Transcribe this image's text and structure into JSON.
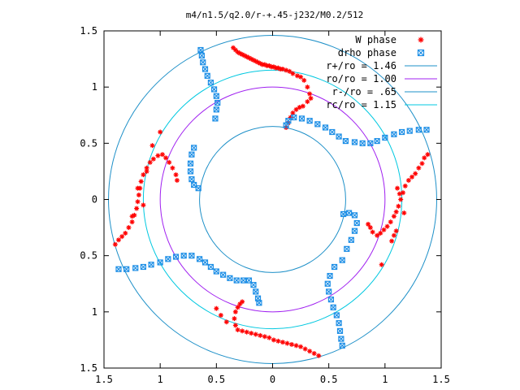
{
  "chart_data": {
    "type": "scatter",
    "title": "m4/n1.5/q2.0/r-+.45-j232/M0.2/512",
    "xlim": [
      -1.5,
      1.5
    ],
    "ylim": [
      -1.5,
      1.5
    ],
    "x_ticks": [
      -1.5,
      -1,
      -0.5,
      0,
      0.5,
      1,
      1.5
    ],
    "y_ticks": [
      -1.5,
      -1,
      -0.5,
      0,
      0.5,
      1,
      1.5
    ],
    "x_tick_labels": [
      "1.5",
      "1",
      "0.5",
      "0",
      "0.5",
      "1",
      "1.5"
    ],
    "y_tick_labels": [
      "1.5",
      "1",
      "0.5",
      "0",
      "0.5",
      "1",
      "1.5"
    ],
    "grid": false,
    "legend_position": "top-right",
    "circles": [
      {
        "name": "r+/ro = 1.46",
        "radius": 1.46,
        "color": "#1e90c8"
      },
      {
        "name": "ro/ro = 1.00",
        "radius": 1.0,
        "color": "#a020f0"
      },
      {
        "name": "r-/ro = .65",
        "radius": 0.65,
        "color": "#1e90c8"
      },
      {
        "name": "rc/ro = 1.15",
        "radius": 1.15,
        "color": "#00c8e0"
      }
    ],
    "series": [
      {
        "name": "W phase",
        "marker": "plus",
        "color": "#ff0000",
        "points": [
          [
            -0.35,
            1.35
          ],
          [
            -0.33,
            1.33
          ],
          [
            -0.31,
            1.31
          ],
          [
            -0.29,
            1.3
          ],
          [
            -0.27,
            1.29
          ],
          [
            -0.25,
            1.28
          ],
          [
            -0.23,
            1.27
          ],
          [
            -0.21,
            1.26
          ],
          [
            -0.19,
            1.25
          ],
          [
            -0.17,
            1.24
          ],
          [
            -0.15,
            1.23
          ],
          [
            -0.13,
            1.22
          ],
          [
            -0.11,
            1.21
          ],
          [
            -0.09,
            1.2
          ],
          [
            -0.07,
            1.2
          ],
          [
            -0.05,
            1.19
          ],
          [
            -0.03,
            1.19
          ],
          [
            -0.01,
            1.18
          ],
          [
            0.01,
            1.18
          ],
          [
            0.03,
            1.17
          ],
          [
            0.05,
            1.17
          ],
          [
            0.07,
            1.16
          ],
          [
            0.09,
            1.16
          ],
          [
            0.12,
            1.15
          ],
          [
            0.15,
            1.14
          ],
          [
            0.18,
            1.12
          ],
          [
            0.22,
            1.1
          ],
          [
            0.25,
            1.09
          ],
          [
            0.28,
            1.06
          ],
          [
            0.31,
            1.0
          ],
          [
            0.33,
            0.94
          ],
          [
            0.34,
            0.9
          ],
          [
            0.31,
            0.87
          ],
          [
            0.27,
            0.83
          ],
          [
            0.24,
            0.82
          ],
          [
            0.21,
            0.8
          ],
          [
            0.18,
            0.77
          ],
          [
            0.16,
            0.73
          ],
          [
            0.14,
            0.68
          ],
          [
            0.12,
            0.64
          ],
          [
            1.38,
            0.4
          ],
          [
            1.35,
            0.37
          ],
          [
            1.33,
            0.32
          ],
          [
            1.3,
            0.28
          ],
          [
            1.27,
            0.23
          ],
          [
            1.24,
            0.2
          ],
          [
            1.21,
            0.17
          ],
          [
            1.18,
            0.12
          ],
          [
            1.16,
            0.06
          ],
          [
            1.14,
            0.0
          ],
          [
            1.12,
            -0.06
          ],
          [
            1.1,
            -0.11
          ],
          [
            1.08,
            -0.15
          ],
          [
            1.05,
            -0.2
          ],
          [
            1.02,
            -0.24
          ],
          [
            0.99,
            -0.27
          ],
          [
            0.96,
            -0.3
          ],
          [
            0.93,
            -0.32
          ],
          [
            0.89,
            -0.29
          ],
          [
            0.87,
            -0.25
          ],
          [
            0.85,
            -0.22
          ],
          [
            1.1,
            -0.28
          ],
          [
            1.08,
            -0.32
          ],
          [
            1.06,
            -0.37
          ],
          [
            0.97,
            -0.58
          ],
          [
            1.17,
            -0.12
          ],
          [
            1.13,
            0.05
          ],
          [
            1.11,
            0.1
          ],
          [
            0.41,
            -1.39
          ],
          [
            0.37,
            -1.37
          ],
          [
            0.33,
            -1.35
          ],
          [
            0.29,
            -1.33
          ],
          [
            0.25,
            -1.31
          ],
          [
            0.21,
            -1.3
          ],
          [
            0.17,
            -1.29
          ],
          [
            0.13,
            -1.28
          ],
          [
            0.09,
            -1.27
          ],
          [
            0.05,
            -1.26
          ],
          [
            0.01,
            -1.25
          ],
          [
            -0.03,
            -1.23
          ],
          [
            -0.07,
            -1.22
          ],
          [
            -0.11,
            -1.21
          ],
          [
            -0.15,
            -1.2
          ],
          [
            -0.19,
            -1.19
          ],
          [
            -0.23,
            -1.18
          ],
          [
            -0.27,
            -1.17
          ],
          [
            -0.31,
            -1.16
          ],
          [
            -0.33,
            -1.12
          ],
          [
            -0.34,
            -1.06
          ],
          [
            -0.33,
            -1.0
          ],
          [
            -0.31,
            -0.96
          ],
          [
            -0.29,
            -0.93
          ],
          [
            -0.27,
            -0.91
          ],
          [
            -0.5,
            -0.97
          ],
          [
            -0.46,
            -1.03
          ],
          [
            -0.41,
            -1.09
          ],
          [
            -1.4,
            -0.4
          ],
          [
            -1.37,
            -0.36
          ],
          [
            -1.34,
            -0.33
          ],
          [
            -1.31,
            -0.3
          ],
          [
            -1.28,
            -0.25
          ],
          [
            -1.25,
            -0.2
          ],
          [
            -1.23,
            -0.14
          ],
          [
            -1.21,
            -0.08
          ],
          [
            -1.2,
            -0.02
          ],
          [
            -1.19,
            0.04
          ],
          [
            -1.18,
            0.1
          ],
          [
            -1.17,
            0.16
          ],
          [
            -1.15,
            0.22
          ],
          [
            -1.12,
            0.28
          ],
          [
            -1.09,
            0.33
          ],
          [
            -1.06,
            0.36
          ],
          [
            -1.02,
            0.39
          ],
          [
            -0.98,
            0.4
          ],
          [
            -0.95,
            0.37
          ],
          [
            -0.92,
            0.33
          ],
          [
            -0.89,
            0.28
          ],
          [
            -0.86,
            0.22
          ],
          [
            -0.85,
            0.17
          ],
          [
            -1.0,
            0.6
          ],
          [
            -1.07,
            0.48
          ],
          [
            -1.12,
            0.25
          ],
          [
            -1.2,
            0.1
          ],
          [
            -1.25,
            -0.15
          ],
          [
            -1.15,
            -0.05
          ]
        ]
      },
      {
        "name": "drho phase",
        "marker": "cross",
        "color": "#1e8fe6",
        "points": [
          [
            -0.64,
            1.33
          ],
          [
            -0.63,
            1.28
          ],
          [
            -0.62,
            1.22
          ],
          [
            -0.6,
            1.16
          ],
          [
            -0.58,
            1.1
          ],
          [
            -0.55,
            1.04
          ],
          [
            -0.52,
            0.98
          ],
          [
            -0.5,
            0.92
          ],
          [
            -0.49,
            0.86
          ],
          [
            -0.5,
            0.8
          ],
          [
            -0.51,
            0.72
          ],
          [
            -0.7,
            0.46
          ],
          [
            -0.72,
            0.4
          ],
          [
            -0.73,
            0.32
          ],
          [
            -0.73,
            0.25
          ],
          [
            -0.72,
            0.18
          ],
          [
            -0.7,
            0.13
          ],
          [
            -0.66,
            0.1
          ],
          [
            1.37,
            0.62
          ],
          [
            1.3,
            0.62
          ],
          [
            1.22,
            0.61
          ],
          [
            1.15,
            0.6
          ],
          [
            1.08,
            0.58
          ],
          [
            1.0,
            0.55
          ],
          [
            0.93,
            0.52
          ],
          [
            0.87,
            0.5
          ],
          [
            0.8,
            0.5
          ],
          [
            0.73,
            0.51
          ],
          [
            0.65,
            0.52
          ],
          [
            0.59,
            0.56
          ],
          [
            0.53,
            0.6
          ],
          [
            0.47,
            0.64
          ],
          [
            0.4,
            0.67
          ],
          [
            0.33,
            0.7
          ],
          [
            0.26,
            0.72
          ],
          [
            0.19,
            0.73
          ],
          [
            0.14,
            0.7
          ],
          [
            0.12,
            0.66
          ],
          [
            0.62,
            -1.3
          ],
          [
            0.61,
            -1.24
          ],
          [
            0.6,
            -1.17
          ],
          [
            0.59,
            -1.1
          ],
          [
            0.57,
            -1.03
          ],
          [
            0.54,
            -0.96
          ],
          [
            0.52,
            -0.89
          ],
          [
            0.5,
            -0.82
          ],
          [
            0.49,
            -0.75
          ],
          [
            0.51,
            -0.68
          ],
          [
            0.55,
            -0.6
          ],
          [
            0.62,
            -0.54
          ],
          [
            0.66,
            -0.44
          ],
          [
            0.7,
            -0.36
          ],
          [
            0.73,
            -0.28
          ],
          [
            0.75,
            -0.21
          ],
          [
            0.73,
            -0.14
          ],
          [
            0.68,
            -0.12
          ],
          [
            0.63,
            -0.13
          ],
          [
            -1.37,
            -0.62
          ],
          [
            -1.3,
            -0.62
          ],
          [
            -1.22,
            -0.61
          ],
          [
            -1.15,
            -0.6
          ],
          [
            -1.08,
            -0.58
          ],
          [
            -1.0,
            -0.56
          ],
          [
            -0.93,
            -0.53
          ],
          [
            -0.86,
            -0.51
          ],
          [
            -0.79,
            -0.5
          ],
          [
            -0.72,
            -0.5
          ],
          [
            -0.65,
            -0.53
          ],
          [
            -0.6,
            -0.56
          ],
          [
            -0.55,
            -0.6
          ],
          [
            -0.5,
            -0.64
          ],
          [
            -0.44,
            -0.67
          ],
          [
            -0.38,
            -0.7
          ],
          [
            -0.32,
            -0.72
          ],
          [
            -0.26,
            -0.72
          ],
          [
            -0.21,
            -0.72
          ],
          [
            -0.17,
            -0.76
          ],
          [
            -0.15,
            -0.82
          ],
          [
            -0.13,
            -0.88
          ],
          [
            -0.12,
            -0.92
          ]
        ]
      }
    ]
  }
}
